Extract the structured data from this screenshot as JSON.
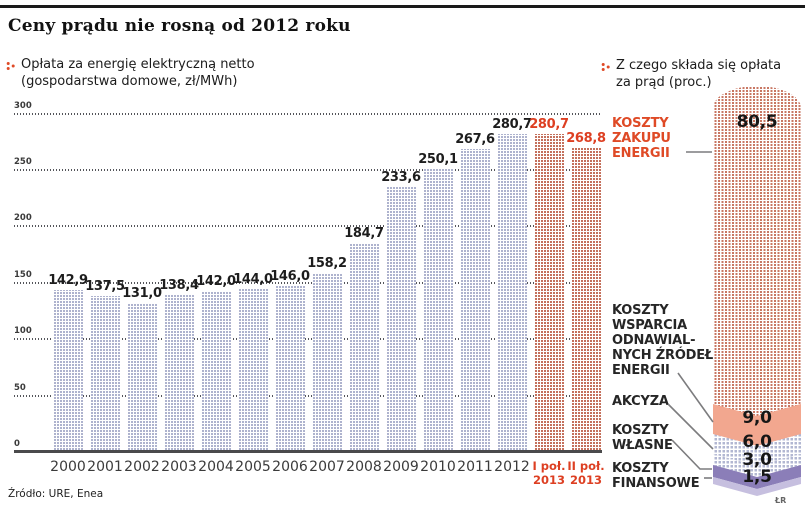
{
  "title": "Ceny prądu nie rosną od 2012 roku",
  "credit": "ŁR",
  "colors": {
    "accent_red": "#df4a26",
    "bar_blue_dots": "#aeb3ce",
    "bar_red_dots": "#c4705c",
    "salmon": "#f2a78f",
    "purple": "#8b7eb8",
    "purple_light": "#c6bfdf",
    "axis": "#4a4a4c"
  },
  "left_chart": {
    "legend": "Opłata za energię elektryczną netto\n(gospodarstwa domowe, zł/MWh)",
    "y_ticks": [
      "300",
      "250",
      "200",
      "150",
      "100",
      "50",
      "0"
    ],
    "source": "Źródło: URE, Enea",
    "bars": [
      {
        "label": "2000",
        "value": 142.9,
        "display": "142,9",
        "highlight": false
      },
      {
        "label": "2001",
        "value": 137.5,
        "display": "137,5",
        "highlight": false
      },
      {
        "label": "2002",
        "value": 131.0,
        "display": "131,0",
        "highlight": false
      },
      {
        "label": "2003",
        "value": 138.4,
        "display": "138,4",
        "highlight": false
      },
      {
        "label": "2004",
        "value": 142.0,
        "display": "142,0",
        "highlight": false
      },
      {
        "label": "2005",
        "value": 144.0,
        "display": "144,0",
        "highlight": false
      },
      {
        "label": "2006",
        "value": 146.0,
        "display": "146,0",
        "highlight": false
      },
      {
        "label": "2007",
        "value": 158.2,
        "display": "158,2",
        "highlight": false
      },
      {
        "label": "2008",
        "value": 184.7,
        "display": "184,7",
        "highlight": false
      },
      {
        "label": "2009",
        "value": 233.6,
        "display": "233,6",
        "highlight": false
      },
      {
        "label": "2010",
        "value": 250.1,
        "display": "250,1",
        "highlight": false
      },
      {
        "label": "2011",
        "value": 267.6,
        "display": "267,6",
        "highlight": false
      },
      {
        "label": "2012",
        "value": 280.7,
        "display": "280,7",
        "highlight": false
      },
      {
        "label": "I poł.\n2013",
        "value": 280.7,
        "display": "280,7",
        "highlight": true
      },
      {
        "label": "II poł.\n2013",
        "value": 268.8,
        "display": "268,8",
        "highlight": true
      }
    ]
  },
  "right_chart": {
    "legend": "Z czego składa się opłata\nza prąd (proc.)",
    "labels": [
      {
        "text": "KOSZTY\nZAKUPU\nENERGII"
      },
      {
        "text": "KOSZTY\nWSPARCIA\nODNAWIAL-\nNYCH ŹRÓDEŁ\nENERGII"
      },
      {
        "text": "AKCYZA"
      },
      {
        "text": "KOSZTY\nWŁASNE"
      },
      {
        "text": "KOSZTY\nFINANSOWE"
      }
    ],
    "segments": [
      {
        "name": "koszty-zakupu-energii",
        "value": 80.5,
        "display": "80,5"
      },
      {
        "name": "koszty-wsparcia-oze",
        "value": 9.0,
        "display": "9,0"
      },
      {
        "name": "akcyza",
        "value": 6.0,
        "display": "6,0"
      },
      {
        "name": "koszty-wlasne",
        "value": 3.0,
        "display": "3,0"
      },
      {
        "name": "koszty-finansowe",
        "value": 1.5,
        "display": "1,5"
      }
    ]
  },
  "chart_data": [
    {
      "type": "bar",
      "title": "Opłata za energię elektryczną netto (gospodarstwa domowe, zł/MWh)",
      "categories": [
        "2000",
        "2001",
        "2002",
        "2003",
        "2004",
        "2005",
        "2006",
        "2007",
        "2008",
        "2009",
        "2010",
        "2011",
        "2012",
        "I poł. 2013",
        "II poł. 2013"
      ],
      "values": [
        142.9,
        137.5,
        131.0,
        138.4,
        142.0,
        144.0,
        146.0,
        158.2,
        184.7,
        233.6,
        250.1,
        267.6,
        280.7,
        280.7,
        268.8
      ],
      "xlabel": "",
      "ylabel": "zł/MWh",
      "ylim": [
        0,
        300
      ],
      "grid": true,
      "highlighted_categories": [
        "I poł. 2013",
        "II poł. 2013"
      ],
      "source": "Źródło: URE, Enea"
    },
    {
      "type": "bar",
      "subtype": "stacked-single-column",
      "title": "Z czego składa się opłata za prąd (proc.)",
      "categories": [
        "opłata za prąd"
      ],
      "series": [
        {
          "name": "KOSZTY ZAKUPU ENERGII",
          "values": [
            80.5
          ]
        },
        {
          "name": "KOSZTY WSPARCIA ODNAWIALNYCH ŹRÓDEŁ ENERGII",
          "values": [
            9.0
          ]
        },
        {
          "name": "AKCYZA",
          "values": [
            6.0
          ]
        },
        {
          "name": "KOSZTY WŁASNE",
          "values": [
            3.0
          ]
        },
        {
          "name": "KOSZTY FINANSOWE",
          "values": [
            1.5
          ]
        }
      ],
      "ylim": [
        0,
        100
      ]
    }
  ]
}
